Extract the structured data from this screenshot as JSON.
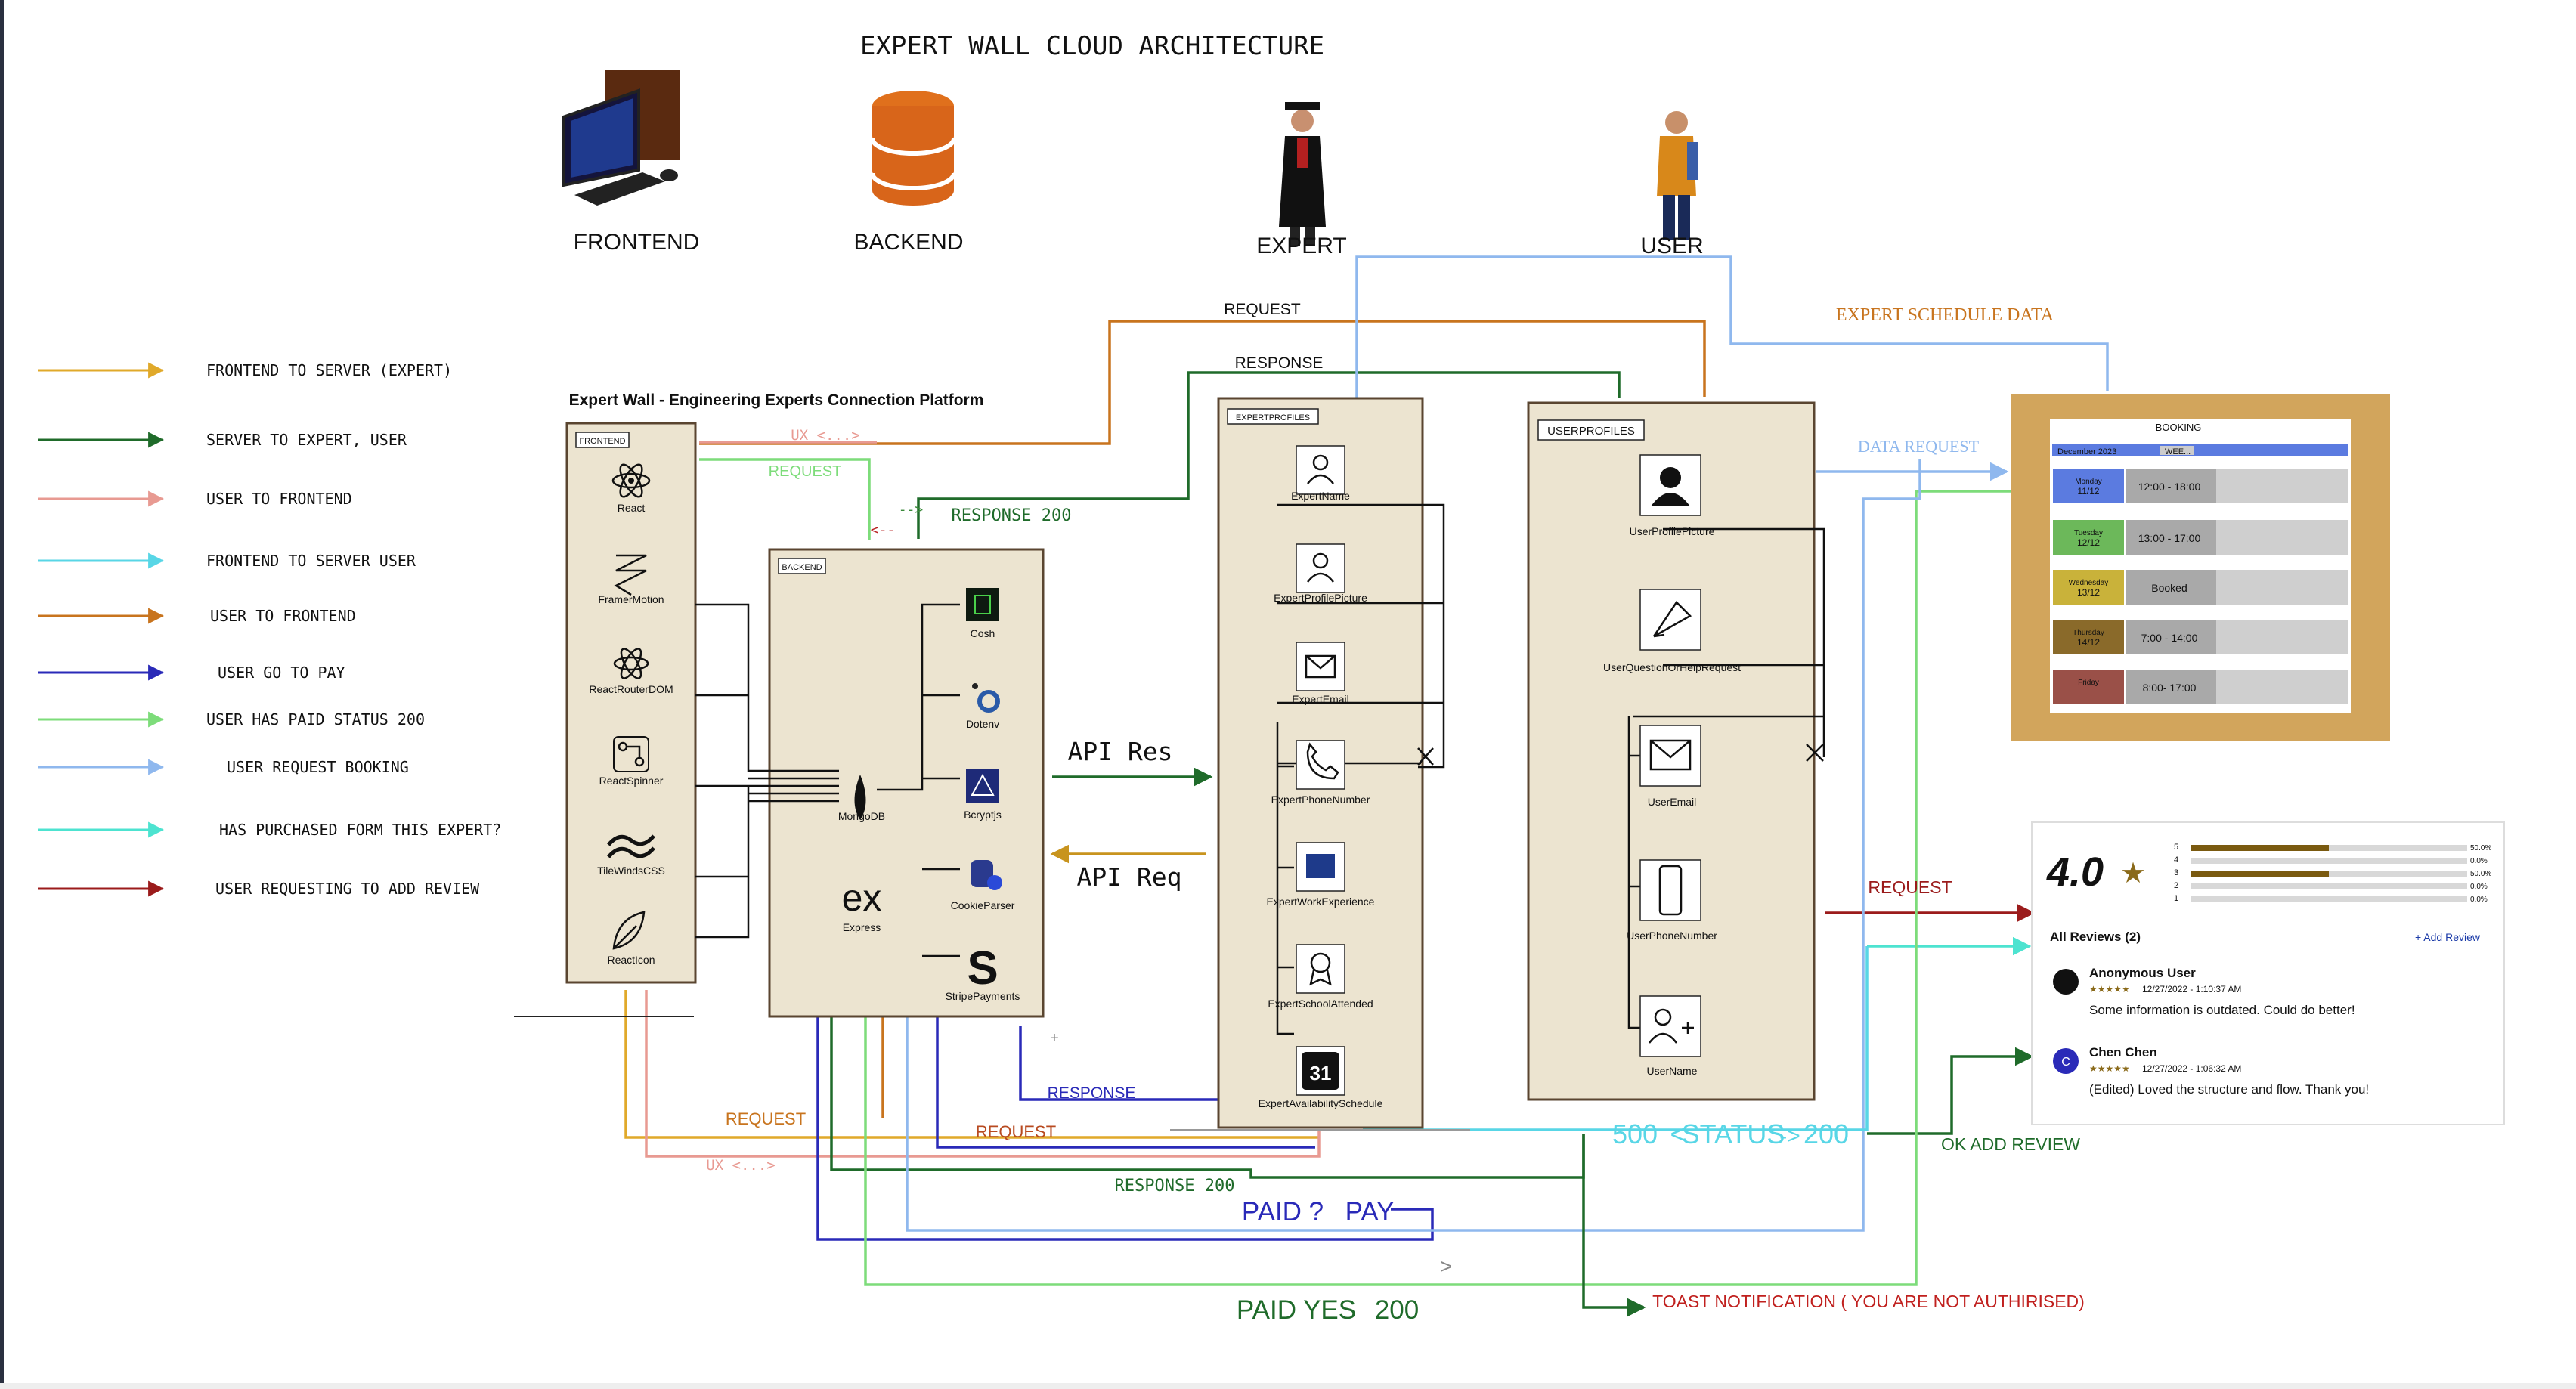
{
  "title": "EXPERT WALL CLOUD ARCHITECTURE",
  "actors": {
    "frontend": "FRONTEND",
    "backend": "BACKEND",
    "expert": "EXPERT",
    "user": "USER"
  },
  "legend": [
    {
      "label": "FRONTEND TO SERVER (EXPERT)",
      "color": "#e0a92a"
    },
    {
      "label": "SERVER TO EXPERT, USER",
      "color": "#1f6b2a"
    },
    {
      "label": "USER TO FRONTEND",
      "color": "#e89a92"
    },
    {
      "label": "FRONTEND TO SERVER USER",
      "color": "#58d6e6"
    },
    {
      "label": "USER TO FRONTEND",
      "color": "#c8741e"
    },
    {
      "label": "USER GO TO PAY",
      "color": "#2a2ab8"
    },
    {
      "label": "USER HAS PAID STATUS 200",
      "color": "#7ddc7a"
    },
    {
      "label": "USER REQUEST BOOKING",
      "color": "#8fb8ee"
    },
    {
      "label": "HAS PURCHASED FORM THIS EXPERT?",
      "color": "#4de3d0"
    },
    {
      "label": "USER REQUESTING TO ADD REVIEW",
      "color": "#9b1b1b"
    }
  ],
  "platform_title": "Expert Wall - Engineering Experts Connection Platform",
  "frontend_box": {
    "tag": "FRONTEND",
    "items": [
      "React",
      "FramerMotion",
      "ReactRouterDOM",
      "ReactSpinner",
      "TileWindsCSS",
      "ReactIcon"
    ]
  },
  "backend_box": {
    "tag": "BACKEND",
    "db": "MongoDB",
    "framework_logo": "ex",
    "framework": "Express",
    "items": [
      "Cosh",
      "Dotenv",
      "Bcryptjs",
      "CookieParser",
      "StripePayments"
    ]
  },
  "expert_box": {
    "tag": "EXPERTPROFILES",
    "items": [
      "ExpertName",
      "ExpertProfilePicture",
      "ExpertEmail",
      "ExpertPhoneNumber",
      "ExpertWorkExperience",
      "ExpertSchoolAttended",
      "ExpertAvailabilitySchedule"
    ],
    "calendar_day": "31"
  },
  "user_box": {
    "tag": "USERPROFILES",
    "items": [
      "UserProfilePicture",
      "UserQuestionOrHelpRequest",
      "UserEmail",
      "UserPhoneNumber",
      "UserName"
    ]
  },
  "flow_labels": {
    "request_top": "REQUEST",
    "response_top": "RESPONSE",
    "expert_schedule": "EXPERT SCHEDULE DATA",
    "ux_top": "UX <...>",
    "request_green": "REQUEST",
    "arrow_small": "-->",
    "arrow_left": "<--",
    "response_200": "RESPONSE 200",
    "api_res": "API Res",
    "api_req": "API Req",
    "data_request": "DATA REQUEST",
    "request_review": "REQUEST",
    "response_blue": "RESPONSE",
    "request_left": "REQUEST",
    "request_mid": "REQUEST",
    "ux_bottom": "UX <...>",
    "response_200_bottom": "RESPONSE 200",
    "paid_q": "PAID ?",
    "pay": "PAY",
    "paid_yes": "PAID YES",
    "paid_code": "200",
    "status_500": "500",
    "status_lt": "<",
    "status_word": "STATUS",
    "status_arrow": "->",
    "status_200": "200",
    "ok_add_review": "OK ADD REVIEW",
    "toast": "TOAST NOTIFICATION ( YOU ARE NOT AUTHIRISED)",
    "gt": ">",
    "plus": "+"
  },
  "booking": {
    "title": "BOOKING",
    "month": "December 2023",
    "view": "WEE...",
    "rows": [
      {
        "day": "Monday",
        "date": "11/12",
        "slot": "12:00 - 18:00",
        "color": "#5b7be0"
      },
      {
        "day": "Tuesday",
        "date": "12/12",
        "slot": "13:00 - 17:00",
        "color": "#6cb85a"
      },
      {
        "day": "Wednesday",
        "date": "13/12",
        "slot": "Booked",
        "color": "#c9b23a"
      },
      {
        "day": "Thursday",
        "date": "14/12",
        "slot": "7:00 - 14:00",
        "color": "#8a6a2a"
      },
      {
        "day": "Friday",
        "date": "",
        "slot": "8:00- 17:00",
        "color": "#9a5048"
      }
    ]
  },
  "reviews": {
    "rating": "4.0",
    "bars": [
      {
        "star": "5",
        "pct": "50.0%",
        "fraction": 0.5
      },
      {
        "star": "4",
        "pct": "0.0%",
        "fraction": 0.0
      },
      {
        "star": "3",
        "pct": "50.0%",
        "fraction": 0.5
      },
      {
        "star": "2",
        "pct": "0.0%",
        "fraction": 0.0
      },
      {
        "star": "1",
        "pct": "0.0%",
        "fraction": 0.0
      }
    ],
    "all_reviews": "All Reviews (2)",
    "add_review": "+ Add Review",
    "entries": [
      {
        "name": "Anonymous User",
        "initial": "",
        "stars": "★★★★★",
        "date": "12/27/2022 - 1:10:37 AM",
        "text": "Some information is outdated. Could do better!"
      },
      {
        "name": "Chen Chen",
        "initial": "C",
        "stars": "★★★★★",
        "date": "12/27/2022 - 1:06:32 AM",
        "text": "(Edited) Loved the structure and flow. Thank you!"
      }
    ]
  }
}
